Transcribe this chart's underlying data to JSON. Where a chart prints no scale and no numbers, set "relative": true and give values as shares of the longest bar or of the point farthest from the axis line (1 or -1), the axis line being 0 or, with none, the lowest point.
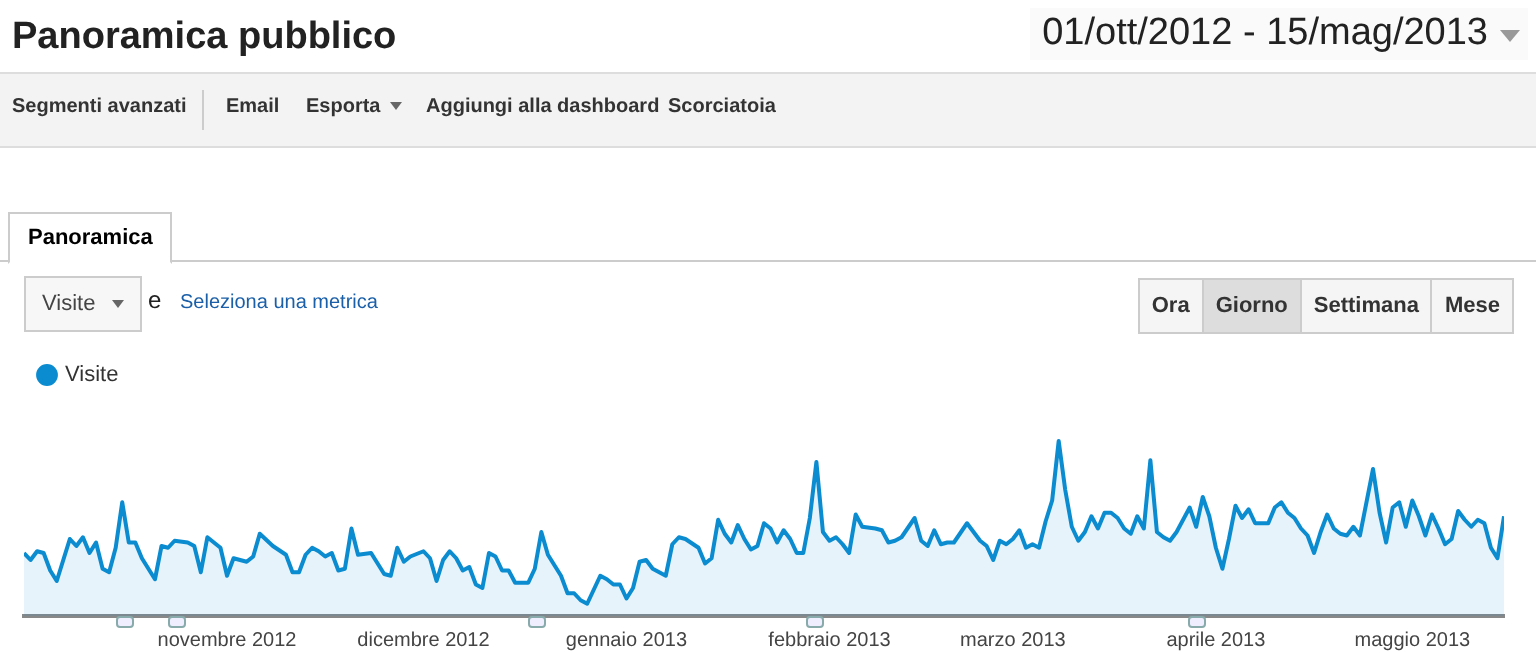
{
  "chart_data": {
    "type": "area",
    "title": "Panoramica pubblico",
    "subtitle": "01/ott/2012 - 15/mag/2013",
    "annotations": [
      "Segmenti avanzati",
      "Email",
      "Esporta",
      "Aggiungi alla dashboard",
      "Scorciatoia",
      "Panoramica",
      "Visite",
      "e",
      "Seleziona una metrica",
      "Ora",
      "Giorno",
      "Settimana",
      "Mese"
    ],
    "relative": true,
    "legend": "top left",
    "marker": "none",
    "xlim": [
      "2012-10-01",
      "2013-05-15"
    ],
    "xticks": [
      {
        "value": "2012-11-01",
        "label": "novembre 2012"
      },
      {
        "value": "2012-12-01",
        "label": "dicembre 2012"
      },
      {
        "value": "2013-01-01",
        "label": "gennaio 2013"
      },
      {
        "value": "2013-02-01",
        "label": "febbraio 2013"
      },
      {
        "value": "2013-03-01",
        "label": "marzo 2013"
      },
      {
        "value": "2013-04-01",
        "label": "aprile 2013"
      },
      {
        "value": "2013-05-01",
        "label": "maggio 2013"
      }
    ],
    "series": [
      {
        "name": "Visite",
        "color": "#0b8bd0",
        "x": [
          "2012-10-01",
          "2012-10-02",
          "2012-10-03",
          "2012-10-04",
          "2012-10-05",
          "2012-10-06",
          "2012-10-07",
          "2012-10-08",
          "2012-10-09",
          "2012-10-10",
          "2012-10-11",
          "2012-10-12",
          "2012-10-13",
          "2012-10-14",
          "2012-10-15",
          "2012-10-16",
          "2012-10-17",
          "2012-10-18",
          "2012-10-19",
          "2012-10-21",
          "2012-10-22",
          "2012-10-23",
          "2012-10-24",
          "2012-10-26",
          "2012-10-27",
          "2012-10-28",
          "2012-10-29",
          "2012-10-31",
          "2012-11-01",
          "2012-11-02",
          "2012-11-04",
          "2012-11-05",
          "2012-11-06",
          "2012-11-08",
          "2012-11-10",
          "2012-11-11",
          "2012-11-12",
          "2012-11-13",
          "2012-11-14",
          "2012-11-15",
          "2012-11-16",
          "2012-11-17",
          "2012-11-18",
          "2012-11-19",
          "2012-11-20",
          "2012-11-21",
          "2012-11-23",
          "2012-11-24",
          "2012-11-25",
          "2012-11-26",
          "2012-11-27",
          "2012-11-28",
          "2012-11-29",
          "2012-12-01",
          "2012-12-02",
          "2012-12-03",
          "2012-12-04",
          "2012-12-05",
          "2012-12-06",
          "2012-12-07",
          "2012-12-08",
          "2012-12-09",
          "2012-12-10",
          "2012-12-11",
          "2012-12-12",
          "2012-12-13",
          "2012-12-14",
          "2012-12-15",
          "2012-12-17",
          "2012-12-18",
          "2012-12-19",
          "2012-12-20",
          "2012-12-22",
          "2012-12-23",
          "2012-12-24",
          "2012-12-25",
          "2012-12-26",
          "2012-12-28",
          "2012-12-29",
          "2012-12-30",
          "2012-12-31",
          "2013-01-01",
          "2013-01-02",
          "2013-01-03",
          "2013-01-04",
          "2013-01-05",
          "2013-01-07",
          "2013-01-08",
          "2013-01-09",
          "2013-01-10",
          "2013-01-12",
          "2013-01-13",
          "2013-01-14",
          "2013-01-15",
          "2013-01-16",
          "2013-01-17",
          "2013-01-18",
          "2013-01-19",
          "2013-01-20",
          "2013-01-21",
          "2013-01-22",
          "2013-01-23",
          "2013-01-24",
          "2013-01-25",
          "2013-01-26",
          "2013-01-27",
          "2013-01-28",
          "2013-01-29",
          "2013-01-30",
          "2013-01-31",
          "2013-02-01",
          "2013-02-02",
          "2013-02-03",
          "2013-02-04",
          "2013-02-05",
          "2013-02-06",
          "2013-02-08",
          "2013-02-09",
          "2013-02-10",
          "2013-02-11",
          "2013-02-12",
          "2013-02-14",
          "2013-02-15",
          "2013-02-16",
          "2013-02-17",
          "2013-02-18",
          "2013-02-19",
          "2013-02-20",
          "2013-02-22",
          "2013-02-23",
          "2013-02-24",
          "2013-02-25",
          "2013-02-26",
          "2013-02-27",
          "2013-02-28",
          "2013-03-01",
          "2013-03-02",
          "2013-03-03",
          "2013-03-04",
          "2013-03-05",
          "2013-03-06",
          "2013-03-07",
          "2013-03-08",
          "2013-03-09",
          "2013-03-10",
          "2013-03-11",
          "2013-03-12",
          "2013-03-13",
          "2013-03-14",
          "2013-03-15",
          "2013-03-16",
          "2013-03-17",
          "2013-03-18",
          "2013-03-19",
          "2013-03-20",
          "2013-03-21",
          "2013-03-22",
          "2013-03-23",
          "2013-03-24",
          "2013-03-25",
          "2013-03-26",
          "2013-03-28",
          "2013-03-29",
          "2013-03-30",
          "2013-03-31",
          "2013-04-01",
          "2013-04-02",
          "2013-04-03",
          "2013-04-04",
          "2013-04-05",
          "2013-04-06",
          "2013-04-07",
          "2013-04-09",
          "2013-04-10",
          "2013-04-11",
          "2013-04-12",
          "2013-04-13",
          "2013-04-14",
          "2013-04-15",
          "2013-04-16",
          "2013-04-17",
          "2013-04-18",
          "2013-04-19",
          "2013-04-20",
          "2013-04-21",
          "2013-04-22",
          "2013-04-23",
          "2013-04-24",
          "2013-04-25",
          "2013-04-26",
          "2013-04-27",
          "2013-04-28",
          "2013-04-29",
          "2013-04-30",
          "2013-05-01",
          "2013-05-02",
          "2013-05-03",
          "2013-05-04",
          "2013-05-05",
          "2013-05-06",
          "2013-05-07",
          "2013-05-08",
          "2013-05-09",
          "2013-05-10",
          "2013-05-11",
          "2013-05-12",
          "2013-05-13",
          "2013-05-14",
          "2013-05-15"
        ],
        "values": [
          0.36,
          0.32,
          0.37,
          0.36,
          0.26,
          0.2,
          0.32,
          0.44,
          0.4,
          0.45,
          0.36,
          0.42,
          0.27,
          0.25,
          0.39,
          0.65,
          0.42,
          0.42,
          0.33,
          0.21,
          0.4,
          0.39,
          0.43,
          0.42,
          0.4,
          0.25,
          0.45,
          0.39,
          0.23,
          0.33,
          0.31,
          0.34,
          0.47,
          0.4,
          0.35,
          0.25,
          0.25,
          0.35,
          0.39,
          0.37,
          0.34,
          0.36,
          0.26,
          0.27,
          0.5,
          0.35,
          0.36,
          0.3,
          0.24,
          0.23,
          0.39,
          0.31,
          0.34,
          0.37,
          0.33,
          0.2,
          0.32,
          0.37,
          0.33,
          0.26,
          0.28,
          0.18,
          0.16,
          0.36,
          0.34,
          0.26,
          0.26,
          0.19,
          0.19,
          0.27,
          0.48,
          0.35,
          0.23,
          0.13,
          0.13,
          0.09,
          0.07,
          0.23,
          0.21,
          0.18,
          0.18,
          0.1,
          0.16,
          0.31,
          0.32,
          0.27,
          0.23,
          0.41,
          0.45,
          0.44,
          0.39,
          0.3,
          0.33,
          0.55,
          0.47,
          0.42,
          0.52,
          0.44,
          0.38,
          0.4,
          0.53,
          0.5,
          0.42,
          0.49,
          0.44,
          0.36,
          0.36,
          0.56,
          0.88,
          0.48,
          0.43,
          0.45,
          0.41,
          0.36,
          0.58,
          0.51,
          0.5,
          0.49,
          0.42,
          0.43,
          0.45,
          0.56,
          0.43,
          0.4,
          0.49,
          0.41,
          0.42,
          0.42,
          0.53,
          0.48,
          0.43,
          0.4,
          0.32,
          0.43,
          0.41,
          0.44,
          0.49,
          0.39,
          0.41,
          0.39,
          0.54,
          0.66,
          1.0,
          0.72,
          0.51,
          0.43,
          0.48,
          0.57,
          0.5,
          0.59,
          0.59,
          0.56,
          0.5,
          0.47,
          0.57,
          0.5,
          0.89,
          0.48,
          0.45,
          0.43,
          0.48,
          0.62,
          0.51,
          0.68,
          0.57,
          0.39,
          0.27,
          0.44,
          0.63,
          0.56,
          0.61,
          0.53,
          0.53,
          0.62,
          0.65,
          0.59,
          0.56,
          0.5,
          0.46,
          0.36,
          0.48,
          0.58,
          0.5,
          0.47,
          0.46,
          0.51,
          0.46,
          0.65,
          0.84,
          0.59,
          0.42,
          0.62,
          0.65,
          0.51,
          0.66,
          0.57,
          0.46,
          0.58,
          0.5,
          0.41,
          0.44,
          0.6,
          0.55,
          0.51,
          0.55,
          0.53,
          0.39,
          0.33,
          0.57
        ]
      }
    ]
  }
}
